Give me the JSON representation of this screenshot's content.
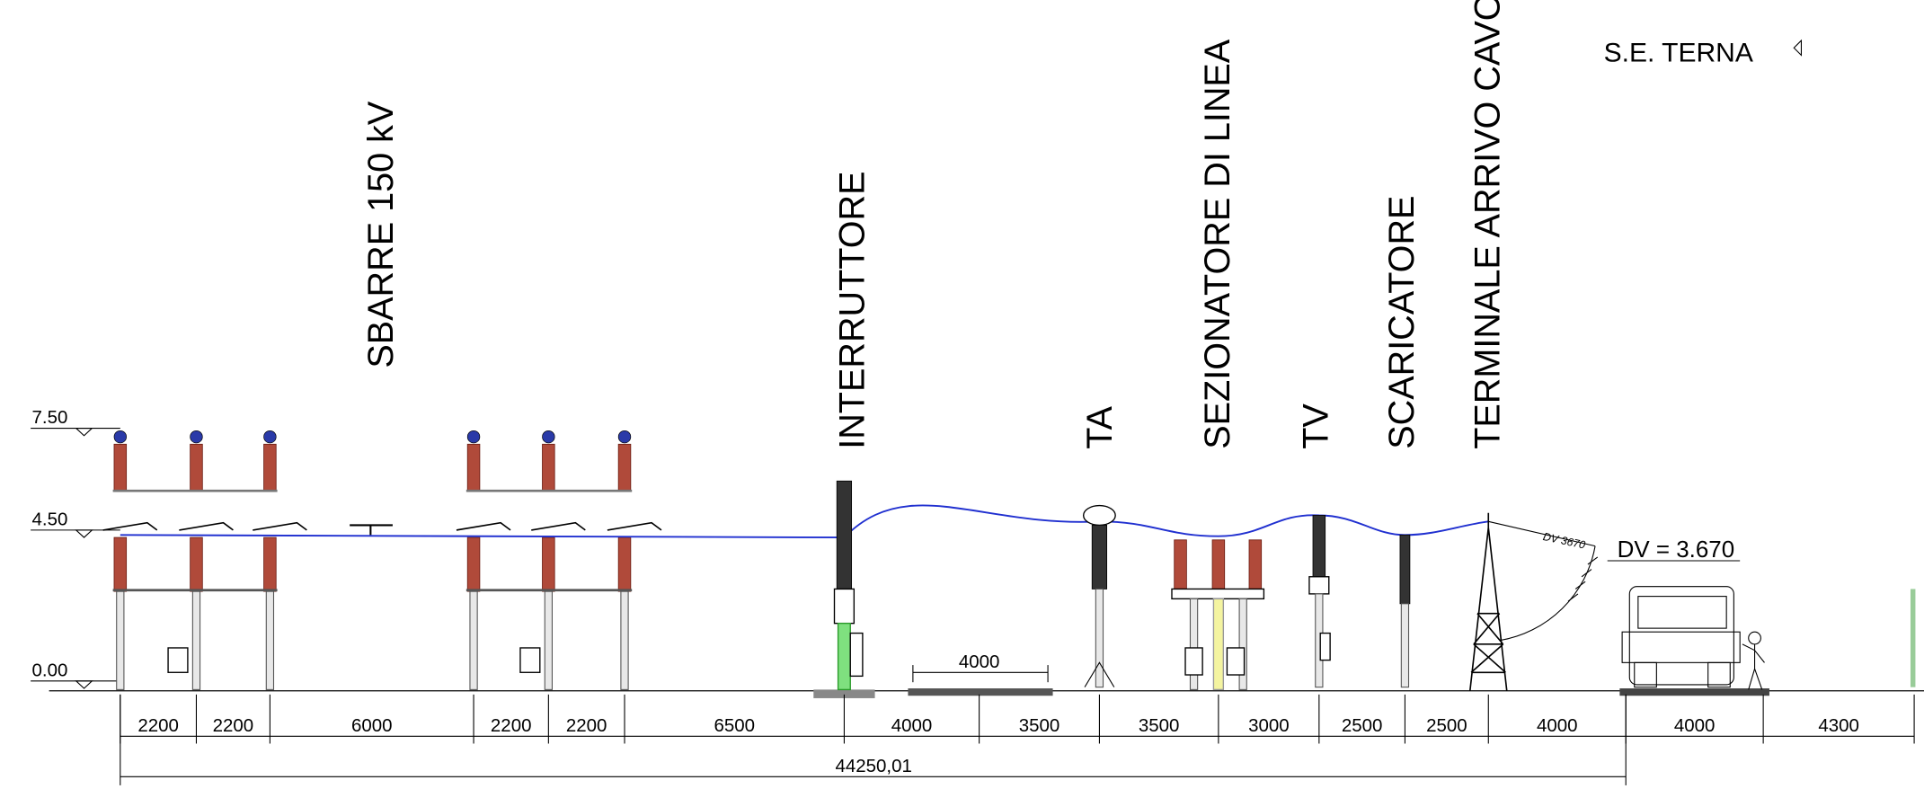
{
  "title": "S.E. TERNA",
  "elevations": [
    "7.50",
    "4.50",
    "0.00"
  ],
  "equipment_labels": [
    "SBARRE 150 kV",
    "INTERRUTTORE",
    "TA",
    "SEZIONATORE DI LINEA",
    "TV",
    "SCARICATORE",
    "TERMINALE ARRIVO CAVO"
  ],
  "dimensions": [
    "2200",
    "2200",
    "6000",
    "2200",
    "2200",
    "6500",
    "4000",
    "3500",
    "3500",
    "3000",
    "2500",
    "2500",
    "4000",
    "4000",
    "4300"
  ],
  "total_dimension": "44250,01",
  "inset_dimension": "4000",
  "clearance": {
    "label": "DV = 3.670",
    "small_label": "DV 3670"
  }
}
